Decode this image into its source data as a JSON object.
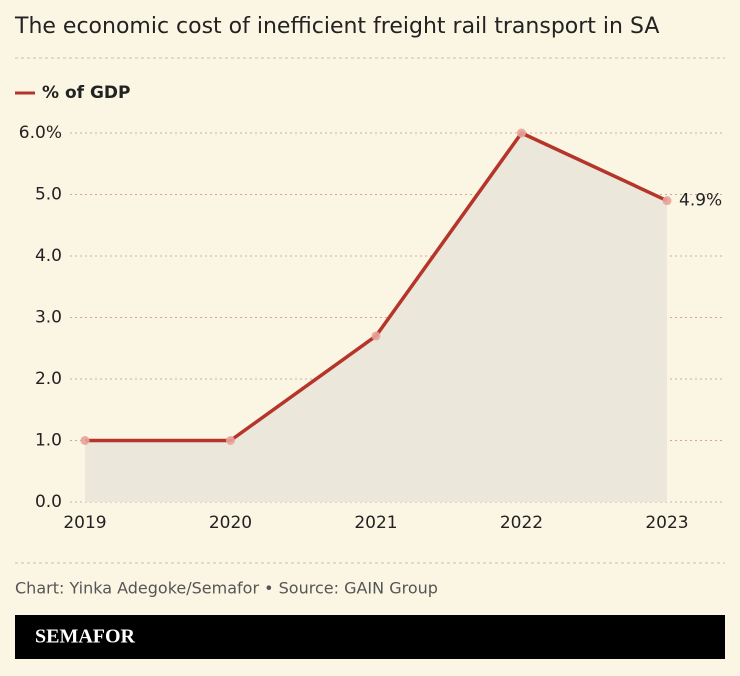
{
  "chart_data": {
    "type": "line",
    "title": "The economic cost of inefficient freight rail transport in SA",
    "categories": [
      "2019",
      "2020",
      "2021",
      "2022",
      "2023"
    ],
    "series": [
      {
        "name": "% of GDP",
        "color": "#b5352a",
        "values": [
          1.0,
          1.0,
          2.7,
          6.0,
          4.9
        ],
        "value_labels": [
          null,
          null,
          null,
          null,
          "4.9%"
        ]
      }
    ],
    "area": true,
    "ylim": [
      0,
      6
    ],
    "yticks": [
      {
        "value": 0,
        "label": "0.0"
      },
      {
        "value": 1,
        "label": "1.0"
      },
      {
        "value": 2,
        "label": "2.0"
      },
      {
        "value": 3,
        "label": "3.0"
      },
      {
        "value": 4,
        "label": "4.0"
      },
      {
        "value": 5,
        "label": "5.0"
      },
      {
        "value": 6,
        "label": "6.0%"
      }
    ],
    "grid": true,
    "legend": "top-left",
    "source": "Chart: Yinka Adegoke/Semafor • Source: GAIN Group",
    "brand": "SEMAFOR"
  }
}
